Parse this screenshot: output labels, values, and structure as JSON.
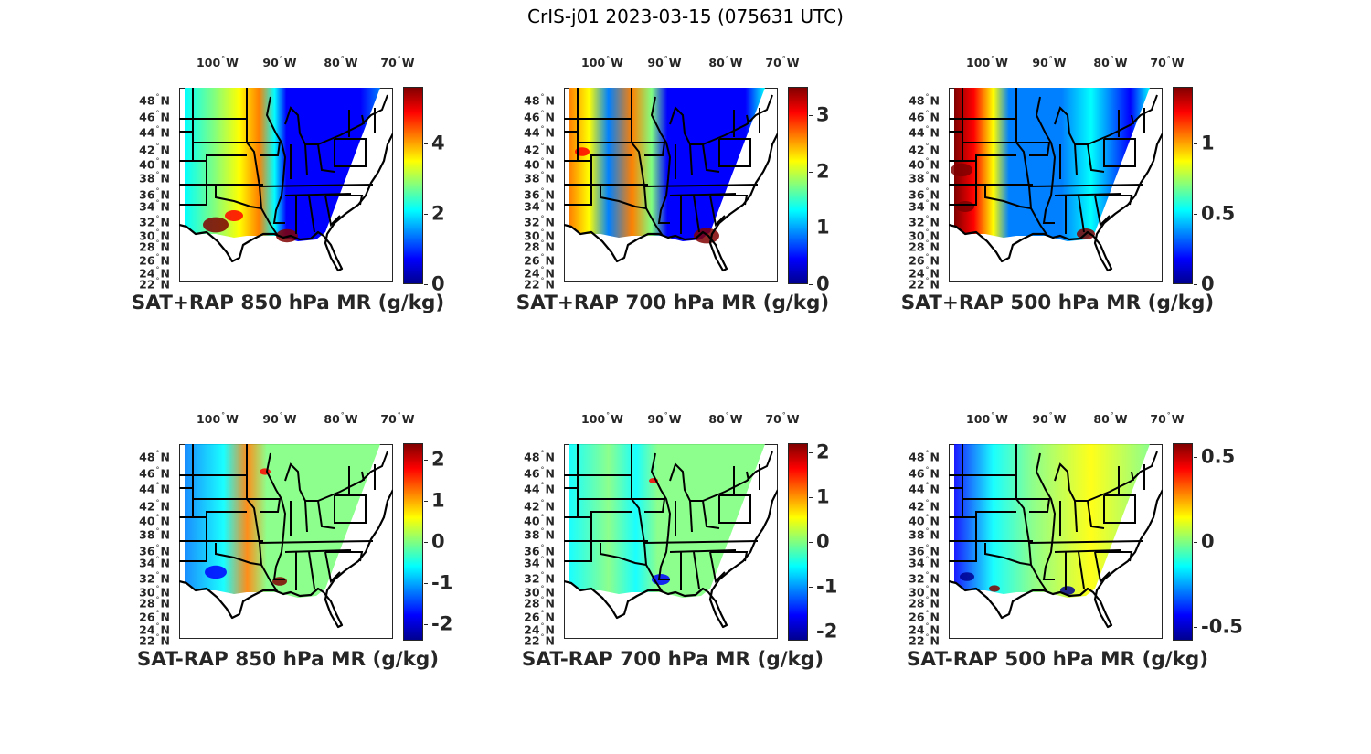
{
  "figure": {
    "title": "CrIS-j01 2023-03-15 (075631 UTC)"
  },
  "colormap": "jet",
  "colors": {
    "jet_stops": [
      "#00008f",
      "#0000ff",
      "#0080ff",
      "#00ffff",
      "#80ff80",
      "#ffff00",
      "#ff8000",
      "#ff0000",
      "#800000"
    ],
    "land_boundary": "#000000",
    "text": "#262626"
  },
  "map_axes": {
    "lon_ticks": [
      {
        "value": -100,
        "num": "100",
        "hemi": "W"
      },
      {
        "value": -90,
        "num": "90",
        "hemi": "W"
      },
      {
        "value": -80,
        "num": "80",
        "hemi": "W"
      },
      {
        "value": -70,
        "num": "70",
        "hemi": "W"
      }
    ],
    "lat_ticks": [
      {
        "value": 48,
        "num": "48",
        "hemi": "N"
      },
      {
        "value": 46,
        "num": "46",
        "hemi": "N"
      },
      {
        "value": 44,
        "num": "44",
        "hemi": "N"
      },
      {
        "value": 42,
        "num": "42",
        "hemi": "N"
      },
      {
        "value": 40,
        "num": "40",
        "hemi": "N"
      },
      {
        "value": 38,
        "num": "38",
        "hemi": "N"
      },
      {
        "value": 36,
        "num": "36",
        "hemi": "N"
      },
      {
        "value": 34,
        "num": "34",
        "hemi": "N"
      },
      {
        "value": 32,
        "num": "32",
        "hemi": "N"
      },
      {
        "value": 30,
        "num": "30",
        "hemi": "N"
      },
      {
        "value": 28,
        "num": "28",
        "hemi": "N"
      },
      {
        "value": 26,
        "num": "26",
        "hemi": "N"
      },
      {
        "value": 24,
        "num": "24",
        "hemi": "N"
      },
      {
        "value": 22,
        "num": "22",
        "hemi": "N"
      }
    ]
  },
  "chart_data": [
    {
      "type": "heatmap",
      "title": "SAT+RAP 850 hPa MR (g/kg)",
      "colorbar": {
        "range": [
          0,
          5.6
        ],
        "ticks": [
          0,
          2,
          4
        ],
        "tick_labels": [
          "0",
          "2",
          "4"
        ]
      },
      "field": "total"
    },
    {
      "type": "heatmap",
      "title": "SAT+RAP 700 hPa MR (g/kg)",
      "colorbar": {
        "range": [
          0,
          3.5
        ],
        "ticks": [
          0,
          1,
          2,
          3
        ],
        "tick_labels": [
          "0",
          "1",
          "2",
          "3"
        ]
      },
      "field": "total"
    },
    {
      "type": "heatmap",
      "title": "SAT+RAP 500 hPa MR (g/kg)",
      "colorbar": {
        "range": [
          0,
          1.4
        ],
        "ticks": [
          0,
          0.5,
          1
        ],
        "tick_labels": [
          "0",
          "0.5",
          "1"
        ]
      },
      "field": "total"
    },
    {
      "type": "heatmap",
      "title": "SAT-RAP 850 hPa MR (g/kg)",
      "colorbar": {
        "range": [
          -2.4,
          2.4
        ],
        "ticks": [
          -2,
          -1,
          0,
          1,
          2
        ],
        "tick_labels": [
          "-2",
          "-1",
          "0",
          "1",
          "2"
        ]
      },
      "field": "difference"
    },
    {
      "type": "heatmap",
      "title": "SAT-RAP 700 hPa MR (g/kg)",
      "colorbar": {
        "range": [
          -2.2,
          2.2
        ],
        "ticks": [
          -2,
          -1,
          0,
          1,
          2
        ],
        "tick_labels": [
          "-2",
          "-1",
          "0",
          "1",
          "2"
        ]
      },
      "field": "difference"
    },
    {
      "type": "heatmap",
      "title": "SAT-RAP 500 hPa MR (g/kg)",
      "colorbar": {
        "range": [
          -0.58,
          0.58
        ],
        "ticks": [
          -0.5,
          0,
          0.5
        ],
        "tick_labels": [
          "-0.5",
          "0",
          "0.5"
        ]
      },
      "field": "difference"
    }
  ]
}
